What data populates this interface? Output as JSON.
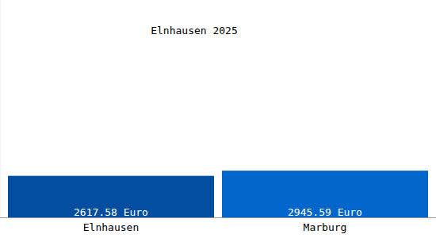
{
  "chart_data": {
    "type": "bar",
    "title": "Elnhausen 2025",
    "categories": [
      "Elnhausen",
      "Marburg"
    ],
    "values": [
      2617.58,
      2945.59
    ],
    "value_labels": [
      "2617.58 Euro",
      "2945.59 Euro"
    ],
    "colors": [
      "#034ea0",
      "#0366cc"
    ],
    "ylim": [
      0,
      13700
    ],
    "data_labels": true,
    "tick_labels": false,
    "grid": false
  }
}
